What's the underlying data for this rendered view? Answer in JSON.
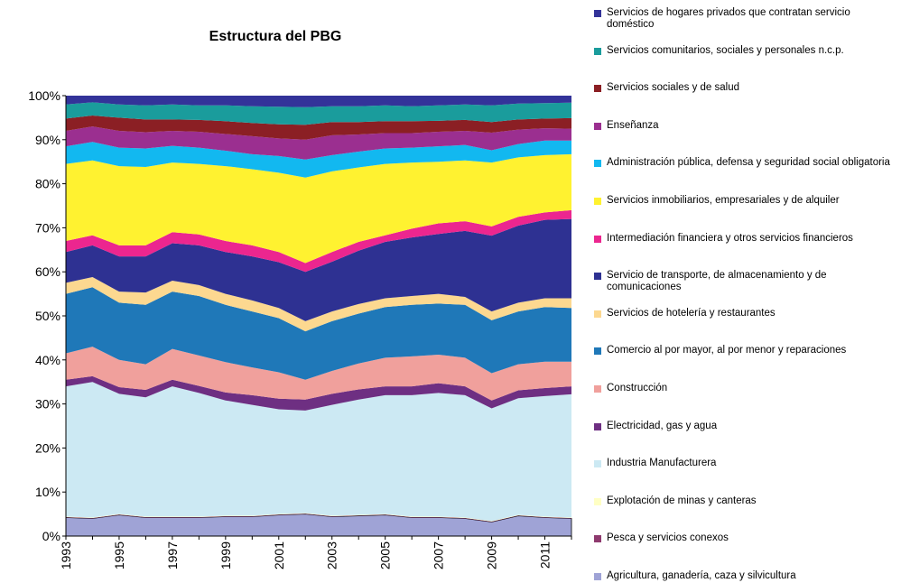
{
  "chart_data": {
    "type": "stacked_area",
    "title": "Estructura del PBG",
    "categories": [
      "1993",
      null,
      "1995",
      null,
      "1997",
      null,
      "1999",
      null,
      "2001",
      null,
      "2003",
      null,
      "2005",
      null,
      "2007",
      null,
      "2009",
      null,
      "2011",
      null
    ],
    "ylim": [
      0,
      100
    ],
    "yticks": [
      {
        "value": 0,
        "label": "0%"
      },
      {
        "value": 10,
        "label": "10%"
      },
      {
        "value": 20,
        "label": "20%"
      },
      {
        "value": 30,
        "label": "30%"
      },
      {
        "value": 40,
        "label": "40%"
      },
      {
        "value": 50,
        "label": "50%"
      },
      {
        "value": 60,
        "label": "60%"
      },
      {
        "value": 70,
        "label": "70%"
      },
      {
        "value": 80,
        "label": "80%"
      },
      {
        "value": 90,
        "label": "90%"
      },
      {
        "value": 100,
        "label": "100%"
      }
    ],
    "series": [
      {
        "name": "Agricultura, ganadería, caza y silvicultura",
        "color": "#9fa3d6",
        "values": [
          4.2,
          4,
          4.8,
          4.2,
          4.2,
          4.2,
          4.4,
          4.4,
          4.8,
          5,
          4.4,
          4.6,
          4.8,
          4.2,
          4.2,
          4,
          3.2,
          4.6,
          4.2,
          4
        ]
      },
      {
        "name": "Pesca y servicios conexos",
        "color": "#8e3a6e",
        "values": [
          0.1,
          0.1,
          0.1,
          0.1,
          0.1,
          0.1,
          0.1,
          0.1,
          0.1,
          0.1,
          0.1,
          0.1,
          0.1,
          0.1,
          0.1,
          0.1,
          0.1,
          0.1,
          0.1,
          0.1
        ]
      },
      {
        "name": "Explotación de minas y canteras",
        "color": "#ffffc4",
        "values": [
          0.1,
          0.1,
          0.1,
          0.1,
          0.1,
          0.1,
          0.1,
          0.1,
          0.1,
          0.1,
          0.1,
          0.1,
          0.1,
          0.1,
          0.1,
          0.1,
          0.1,
          0.1,
          0.1,
          0.1
        ]
      },
      {
        "name": "Industria Manufacturera",
        "color": "#cce9f3",
        "values": [
          29.6,
          30.8,
          27.3,
          27.1,
          29.6,
          28.1,
          26.2,
          25.2,
          23.8,
          23.3,
          25.2,
          26.2,
          27,
          27.6,
          28.1,
          27.8,
          25.6,
          26.5,
          27.4,
          28
        ]
      },
      {
        "name": "Electricidad, gas y agua",
        "color": "#6e2f82",
        "values": [
          1.5,
          1.3,
          1.5,
          1.7,
          1.5,
          1.6,
          1.8,
          2.2,
          2.4,
          2.5,
          2.5,
          2.3,
          2,
          2,
          2.2,
          2,
          1.8,
          1.8,
          1.8,
          1.8
        ]
      },
      {
        "name": "Construcción",
        "color": "#f0a09c",
        "values": [
          6,
          6.7,
          6.2,
          5.8,
          7,
          6.9,
          6.9,
          6.3,
          6,
          4.5,
          5.2,
          5.9,
          6.5,
          6.8,
          6.5,
          6.5,
          6.2,
          5.9,
          6,
          5.6
        ]
      },
      {
        "name": "Comercio al por mayor, al por menor y reparaciones",
        "color": "#1f78b8",
        "values": [
          13.5,
          13.5,
          13,
          13.5,
          13,
          13.5,
          13,
          12.7,
          12.3,
          11,
          11.3,
          11.3,
          11.5,
          11.7,
          11.6,
          12,
          12,
          12,
          12.4,
          12.2
        ]
      },
      {
        "name": "Servicios de hotelería y restaurantes",
        "color": "#fcd890",
        "values": [
          2.5,
          2.3,
          2.5,
          2.8,
          2.5,
          2.5,
          2.5,
          2.5,
          2.3,
          2.3,
          2.2,
          2.2,
          2,
          2,
          2.2,
          1.8,
          2,
          2,
          2,
          2.2
        ]
      },
      {
        "name": "Servicio de transporte, de almacenamiento y de comunicaciones",
        "color": "#2e3192",
        "values": [
          7,
          7.2,
          8,
          8.2,
          8.5,
          9,
          9.5,
          10,
          10.4,
          11.2,
          11.3,
          12.1,
          12.8,
          13.3,
          13.6,
          15,
          17.2,
          17.5,
          17.8,
          18
        ]
      },
      {
        "name": "Intermediación financiera y otros servicios financieros",
        "color": "#ec268f",
        "values": [
          2.5,
          2.3,
          2.5,
          2.5,
          2.5,
          2.5,
          2.5,
          2.5,
          2.3,
          2,
          2.2,
          2,
          1.5,
          2,
          2.4,
          2.2,
          2.1,
          2,
          1.7,
          2
        ]
      },
      {
        "name": "Servicios inmobiliarios, empresariales  y de alquiler",
        "color": "#fff230",
        "values": [
          17.5,
          17,
          18,
          17.8,
          15.8,
          16,
          17,
          17.3,
          18,
          19.4,
          18.3,
          16.9,
          16.2,
          15,
          14,
          13.8,
          14.5,
          13.5,
          13,
          12.7
        ]
      },
      {
        "name": "Administración pública, defensa y seguridad social obligatoria",
        "color": "#12b8f0",
        "values": [
          4,
          4.2,
          4.2,
          4.2,
          3.8,
          3.7,
          3.5,
          3.4,
          3.8,
          4.1,
          3.7,
          3.6,
          3.5,
          3.4,
          3.5,
          3.5,
          2.8,
          3,
          3.3,
          3.1
        ]
      },
      {
        "name": "Enseñanza",
        "color": "#9b2f90",
        "values": [
          3.5,
          3.5,
          3.8,
          3.7,
          3.4,
          3.6,
          3.8,
          4.1,
          4,
          4.5,
          4.5,
          3.9,
          3.5,
          3.3,
          3.3,
          3.2,
          4,
          3.3,
          2.8,
          2.7
        ]
      },
      {
        "name": "Servicios sociales y de salud",
        "color": "#8b1f24",
        "values": [
          2.8,
          2.5,
          3,
          2.9,
          2.6,
          2.7,
          2.9,
          3,
          3.2,
          3.4,
          3,
          2.8,
          2.7,
          2.7,
          2.5,
          2.5,
          2.4,
          2.3,
          2.2,
          2.4
        ]
      },
      {
        "name": "Servicios comunitarios, sociales y personales n.c.p.",
        "color": "#1a9c9c",
        "values": [
          3.2,
          3,
          3,
          3.2,
          3.4,
          3.3,
          3.6,
          3.8,
          4,
          4,
          3.6,
          3.6,
          3.6,
          3.4,
          3.5,
          3.5,
          3.8,
          3.6,
          3.5,
          3.5
        ]
      },
      {
        "name": "Servicios de hogares privados que contratan servicio doméstico",
        "color": "#333399",
        "values": [
          2,
          1.5,
          2,
          2.2,
          2,
          2.2,
          2.2,
          2.4,
          2.5,
          2.6,
          2.4,
          2.4,
          2.2,
          2.4,
          2.2,
          2,
          2.2,
          1.8,
          1.7,
          1.6
        ]
      }
    ]
  }
}
